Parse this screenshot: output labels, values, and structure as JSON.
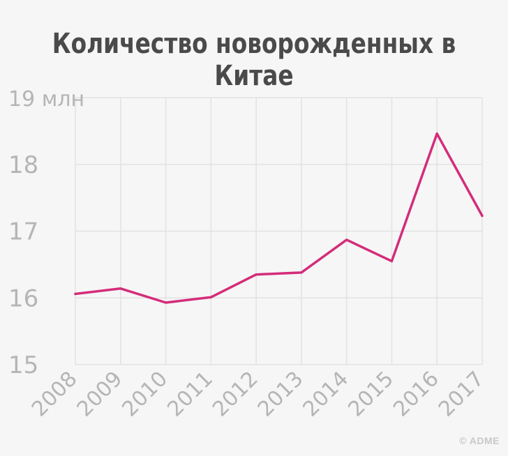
{
  "chart_data": {
    "type": "line",
    "title": "Количество новорожденных в Китае",
    "categories": [
      "2008",
      "2009",
      "2010",
      "2011",
      "2012",
      "2013",
      "2014",
      "2015",
      "2016",
      "2017"
    ],
    "series": [
      {
        "values": [
          16.06,
          16.14,
          15.93,
          16.01,
          16.35,
          16.38,
          16.87,
          16.55,
          18.46,
          17.23
        ],
        "color": "#d42c7a"
      }
    ],
    "y_ticks": [
      {
        "value": 19,
        "label": "19 млн"
      },
      {
        "value": 18,
        "label": "18"
      },
      {
        "value": 17,
        "label": "17"
      },
      {
        "value": 16,
        "label": "16"
      },
      {
        "value": 15,
        "label": "15"
      }
    ],
    "ylim": [
      15,
      19
    ],
    "grid": true,
    "colors": {
      "grid": "#e2e2e2",
      "tick_label": "#b5b5b5",
      "line": "#d42c7a"
    }
  },
  "watermark": "© ADME"
}
